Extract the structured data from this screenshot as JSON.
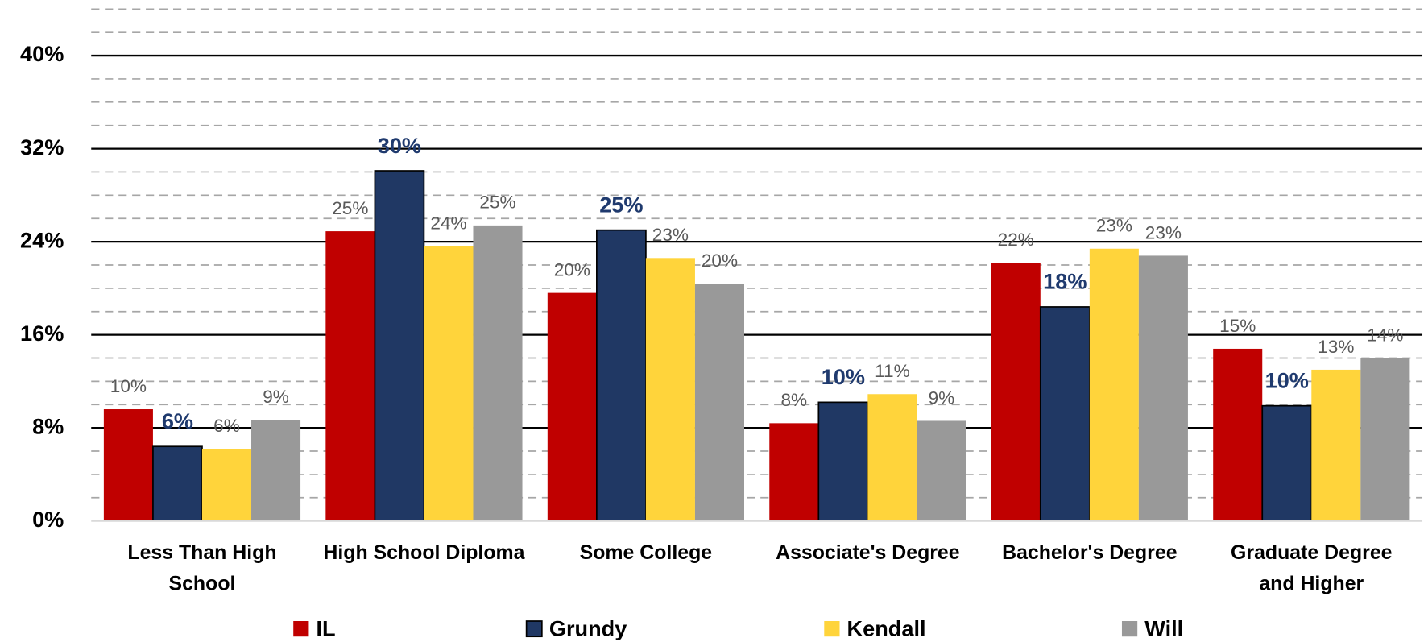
{
  "chart_data": {
    "type": "bar",
    "categories": [
      "Less Than High\nSchool",
      "High School Diploma",
      "Some College",
      "Associate's Degree",
      "Bachelor's Degree",
      "Graduate Degree\nand Higher"
    ],
    "series": [
      {
        "name": "IL",
        "color": "#c00000",
        "label_color": "#595959",
        "values": [
          9.6,
          24.9,
          19.6,
          8.4,
          22.2,
          14.8
        ],
        "value_labels": [
          "10%",
          "25%",
          "20%",
          "8%",
          "22%",
          "15%"
        ]
      },
      {
        "name": "Grundy",
        "color": "#203864",
        "label_color": "#1f3a6e",
        "values": [
          6.4,
          30.1,
          25.0,
          10.2,
          18.4,
          9.9
        ],
        "value_labels": [
          "6%",
          "30%",
          "25%",
          "10%",
          "18%",
          "10%"
        ]
      },
      {
        "name": "Kendall",
        "color": "#ffd43b",
        "label_color": "#595959",
        "values": [
          6.2,
          23.6,
          22.6,
          10.9,
          23.4,
          13.0
        ],
        "value_labels": [
          "6%",
          "24%",
          "23%",
          "11%",
          "23%",
          "13%"
        ]
      },
      {
        "name": "Will",
        "color": "#999999",
        "label_color": "#595959",
        "values": [
          8.7,
          25.4,
          20.4,
          8.6,
          22.8,
          14.0
        ],
        "value_labels": [
          "9%",
          "25%",
          "20%",
          "9%",
          "23%",
          "14%"
        ]
      }
    ],
    "ylim": [
      0,
      44
    ],
    "yticks": [
      {
        "value": 0,
        "label": "0%"
      },
      {
        "value": 8,
        "label": "8%"
      },
      {
        "value": 16,
        "label": "16%"
      },
      {
        "value": 24,
        "label": "24%"
      },
      {
        "value": 32,
        "label": "32%"
      },
      {
        "value": 40,
        "label": "40%"
      }
    ],
    "minor_yticks": [
      2,
      4,
      6,
      10,
      12,
      14,
      18,
      20,
      22,
      26,
      28,
      30,
      34,
      36,
      38,
      42,
      44
    ],
    "grid": true,
    "legend": "bottom"
  }
}
